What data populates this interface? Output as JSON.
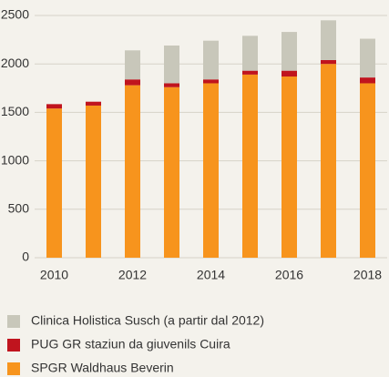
{
  "chart_data": {
    "type": "stacked_bar",
    "x": [
      2010,
      2011,
      2012,
      2013,
      2014,
      2015,
      2016,
      2017,
      2018
    ],
    "xlim": [
      2009.5,
      2018.5
    ],
    "xticks": [
      2010,
      2012,
      2014,
      2016,
      2018
    ],
    "ylim": [
      0,
      2500
    ],
    "yticks": [
      0,
      500,
      1000,
      1500,
      2000,
      2500
    ],
    "grid": true,
    "series": [
      {
        "name": "SPGR Waldhaus Beverin",
        "color": "#f7941d",
        "values": [
          1540,
          1570,
          1780,
          1760,
          1800,
          1890,
          1870,
          2000,
          1800
        ]
      },
      {
        "name": "PUG GR staziun da giuvenils Cuira",
        "color": "#c0141e",
        "values": [
          45,
          40,
          60,
          40,
          40,
          40,
          60,
          40,
          60
        ]
      },
      {
        "name": "Clinica Holistica Susch (a partir dal 2012)",
        "color": "#c8c7ba",
        "values": [
          null,
          null,
          300,
          390,
          400,
          360,
          400,
          410,
          400
        ]
      }
    ],
    "legend": "bottom"
  }
}
